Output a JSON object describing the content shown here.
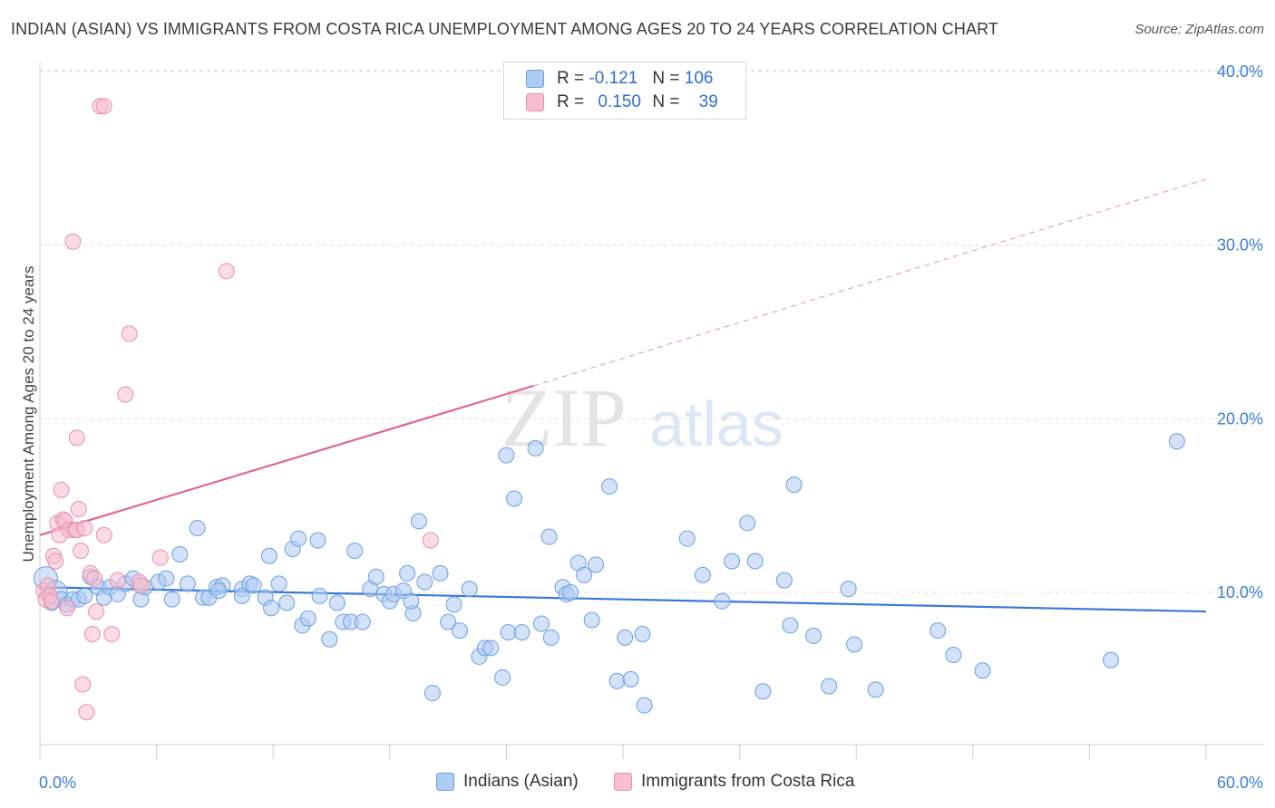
{
  "header": {
    "title": "INDIAN (ASIAN) VS IMMIGRANTS FROM COSTA RICA UNEMPLOYMENT AMONG AGES 20 TO 24 YEARS CORRELATION CHART",
    "source": "Source: ZipAtlas.com"
  },
  "watermark": {
    "zip": "ZIP",
    "atlas": "atlas"
  },
  "legend": {
    "r_label": "R =",
    "n_label": "N =",
    "series": [
      {
        "name": "Indians (Asian)",
        "r": "-0.121",
        "n": "106",
        "color": "#6a9fe0",
        "fill": "#aecbf2"
      },
      {
        "name": "Immigrants from Costa Rica",
        "r": "0.150",
        "n": "39",
        "color": "#e890aa",
        "fill": "#f7bdd0"
      }
    ]
  },
  "chart_data": {
    "type": "scatter",
    "title": "INDIAN (ASIAN) VS IMMIGRANTS FROM COSTA RICA UNEMPLOYMENT AMONG AGES 20 TO 24 YEARS CORRELATION CHART",
    "xlabel": "",
    "ylabel": "Unemployment Among Ages 20 to 24 years",
    "xlim": [
      0,
      60
    ],
    "ylim": [
      0,
      42
    ],
    "x_tick_labels": [
      "0.0%",
      "60.0%"
    ],
    "y_ticks": [
      10,
      20,
      30,
      40
    ],
    "y_tick_labels": [
      "10.0%",
      "20.0%",
      "30.0%",
      "40.0%"
    ],
    "grid": true,
    "series": [
      {
        "name": "Indians (Asian)",
        "color": "#3a78d8",
        "trend": {
          "x": [
            0,
            60
          ],
          "y": [
            10.3,
            8.9
          ],
          "style": "solid"
        },
        "points": [
          {
            "x": 0.3,
            "y": 10.8,
            "big": true
          },
          {
            "x": 0.8,
            "y": 10.0,
            "big": true
          },
          {
            "x": 1.1,
            "y": 9.6
          },
          {
            "x": 1.4,
            "y": 9.3
          },
          {
            "x": 1.7,
            "y": 9.6
          },
          {
            "x": 2.0,
            "y": 9.6
          },
          {
            "x": 2.3,
            "y": 9.8
          },
          {
            "x": 2.6,
            "y": 10.9
          },
          {
            "x": 3.0,
            "y": 10.3
          },
          {
            "x": 3.3,
            "y": 9.7
          },
          {
            "x": 3.6,
            "y": 10.3
          },
          {
            "x": 4.0,
            "y": 9.9
          },
          {
            "x": 4.4,
            "y": 10.5
          },
          {
            "x": 4.8,
            "y": 10.8
          },
          {
            "x": 5.2,
            "y": 9.6
          },
          {
            "x": 5.4,
            "y": 10.3
          },
          {
            "x": 6.1,
            "y": 10.6
          },
          {
            "x": 6.5,
            "y": 10.8
          },
          {
            "x": 6.8,
            "y": 9.6
          },
          {
            "x": 7.2,
            "y": 12.2
          },
          {
            "x": 7.6,
            "y": 10.5
          },
          {
            "x": 8.1,
            "y": 13.7
          },
          {
            "x": 8.4,
            "y": 9.7
          },
          {
            "x": 8.7,
            "y": 9.7
          },
          {
            "x": 9.1,
            "y": 10.3
          },
          {
            "x": 9.4,
            "y": 10.4
          },
          {
            "x": 9.2,
            "y": 10.1
          },
          {
            "x": 10.4,
            "y": 10.2
          },
          {
            "x": 10.4,
            "y": 9.8
          },
          {
            "x": 10.8,
            "y": 10.5
          },
          {
            "x": 11.0,
            "y": 10.4
          },
          {
            "x": 11.6,
            "y": 9.7
          },
          {
            "x": 11.8,
            "y": 12.1
          },
          {
            "x": 11.9,
            "y": 9.1
          },
          {
            "x": 12.3,
            "y": 10.5
          },
          {
            "x": 12.7,
            "y": 9.4
          },
          {
            "x": 13.0,
            "y": 12.5
          },
          {
            "x": 13.3,
            "y": 13.1
          },
          {
            "x": 13.5,
            "y": 8.1
          },
          {
            "x": 13.8,
            "y": 8.5
          },
          {
            "x": 14.3,
            "y": 13.0
          },
          {
            "x": 14.4,
            "y": 9.8
          },
          {
            "x": 14.9,
            "y": 7.3
          },
          {
            "x": 15.3,
            "y": 9.4
          },
          {
            "x": 15.6,
            "y": 8.3
          },
          {
            "x": 16.2,
            "y": 12.4
          },
          {
            "x": 16.0,
            "y": 8.3
          },
          {
            "x": 16.6,
            "y": 8.3
          },
          {
            "x": 17.0,
            "y": 10.2
          },
          {
            "x": 17.3,
            "y": 10.9
          },
          {
            "x": 17.7,
            "y": 9.9
          },
          {
            "x": 18.0,
            "y": 9.5
          },
          {
            "x": 18.2,
            "y": 9.9
          },
          {
            "x": 18.7,
            "y": 10.1
          },
          {
            "x": 18.9,
            "y": 11.1
          },
          {
            "x": 19.2,
            "y": 8.8
          },
          {
            "x": 19.5,
            "y": 14.1
          },
          {
            "x": 19.8,
            "y": 10.6
          },
          {
            "x": 20.2,
            "y": 4.2
          },
          {
            "x": 20.6,
            "y": 11.1
          },
          {
            "x": 21.0,
            "y": 8.3
          },
          {
            "x": 21.3,
            "y": 9.3
          },
          {
            "x": 21.6,
            "y": 7.8
          },
          {
            "x": 22.1,
            "y": 10.2
          },
          {
            "x": 22.6,
            "y": 6.3
          },
          {
            "x": 22.9,
            "y": 6.8
          },
          {
            "x": 23.2,
            "y": 6.8
          },
          {
            "x": 23.8,
            "y": 5.1
          },
          {
            "x": 24.1,
            "y": 7.7
          },
          {
            "x": 24.4,
            "y": 15.4
          },
          {
            "x": 24.8,
            "y": 7.7
          },
          {
            "x": 25.5,
            "y": 18.3
          },
          {
            "x": 25.8,
            "y": 8.2
          },
          {
            "x": 26.2,
            "y": 13.2
          },
          {
            "x": 26.3,
            "y": 7.4
          },
          {
            "x": 26.9,
            "y": 10.3
          },
          {
            "x": 27.1,
            "y": 9.9
          },
          {
            "x": 27.3,
            "y": 10.0
          },
          {
            "x": 27.7,
            "y": 11.7
          },
          {
            "x": 28.0,
            "y": 11.0
          },
          {
            "x": 28.4,
            "y": 8.4
          },
          {
            "x": 28.6,
            "y": 11.6
          },
          {
            "x": 29.3,
            "y": 16.1
          },
          {
            "x": 29.7,
            "y": 4.9
          },
          {
            "x": 30.1,
            "y": 7.4
          },
          {
            "x": 30.4,
            "y": 5.0
          },
          {
            "x": 31.0,
            "y": 7.6
          },
          {
            "x": 31.1,
            "y": 3.5
          },
          {
            "x": 33.3,
            "y": 13.1
          },
          {
            "x": 34.1,
            "y": 11.0
          },
          {
            "x": 35.1,
            "y": 9.5
          },
          {
            "x": 35.6,
            "y": 11.8
          },
          {
            "x": 36.4,
            "y": 14.0
          },
          {
            "x": 36.8,
            "y": 11.8
          },
          {
            "x": 37.2,
            "y": 4.3
          },
          {
            "x": 38.3,
            "y": 10.7
          },
          {
            "x": 38.6,
            "y": 8.1
          },
          {
            "x": 38.8,
            "y": 16.2
          },
          {
            "x": 39.8,
            "y": 7.5
          },
          {
            "x": 40.6,
            "y": 4.6
          },
          {
            "x": 41.6,
            "y": 10.2
          },
          {
            "x": 41.9,
            "y": 7.0
          },
          {
            "x": 43.0,
            "y": 4.4
          },
          {
            "x": 46.2,
            "y": 7.8
          },
          {
            "x": 47.0,
            "y": 6.4
          },
          {
            "x": 48.5,
            "y": 5.5
          },
          {
            "x": 55.1,
            "y": 6.1
          },
          {
            "x": 58.5,
            "y": 18.7
          },
          {
            "x": 24.0,
            "y": 17.9
          },
          {
            "x": 19.1,
            "y": 9.5
          },
          {
            "x": 0.6,
            "y": 9.4
          }
        ]
      },
      {
        "name": "Immigrants from Costa Rica",
        "color": "#e0688f",
        "trend": {
          "x": [
            0,
            25.4
          ],
          "y": [
            13.3,
            21.9
          ],
          "style": "solid",
          "extended": {
            "x": [
              25.4,
              60
            ],
            "y": [
              21.9,
              33.8
            ],
            "style": "dashed"
          }
        },
        "points": [
          {
            "x": 0.2,
            "y": 10.1
          },
          {
            "x": 0.3,
            "y": 9.6
          },
          {
            "x": 0.4,
            "y": 10.4
          },
          {
            "x": 0.5,
            "y": 9.8
          },
          {
            "x": 0.6,
            "y": 9.5
          },
          {
            "x": 0.7,
            "y": 12.1
          },
          {
            "x": 0.8,
            "y": 11.8
          },
          {
            "x": 0.9,
            "y": 14.0
          },
          {
            "x": 1.0,
            "y": 13.3
          },
          {
            "x": 1.1,
            "y": 15.9
          },
          {
            "x": 1.2,
            "y": 14.2
          },
          {
            "x": 1.3,
            "y": 14.1
          },
          {
            "x": 1.4,
            "y": 9.1
          },
          {
            "x": 1.5,
            "y": 13.6
          },
          {
            "x": 1.7,
            "y": 30.2
          },
          {
            "x": 1.8,
            "y": 13.6
          },
          {
            "x": 1.9,
            "y": 13.6
          },
          {
            "x": 1.9,
            "y": 18.9
          },
          {
            "x": 2.0,
            "y": 14.8
          },
          {
            "x": 2.1,
            "y": 12.4
          },
          {
            "x": 2.2,
            "y": 4.7
          },
          {
            "x": 2.3,
            "y": 13.7
          },
          {
            "x": 2.4,
            "y": 3.1
          },
          {
            "x": 2.6,
            "y": 11.1
          },
          {
            "x": 2.7,
            "y": 7.6
          },
          {
            "x": 2.8,
            "y": 10.8
          },
          {
            "x": 2.9,
            "y": 8.9
          },
          {
            "x": 3.1,
            "y": 38.0
          },
          {
            "x": 3.3,
            "y": 38.0
          },
          {
            "x": 3.3,
            "y": 13.3
          },
          {
            "x": 3.7,
            "y": 7.6
          },
          {
            "x": 4.0,
            "y": 10.7
          },
          {
            "x": 4.4,
            "y": 21.4
          },
          {
            "x": 4.6,
            "y": 24.9
          },
          {
            "x": 5.1,
            "y": 10.6
          },
          {
            "x": 5.2,
            "y": 10.4
          },
          {
            "x": 6.2,
            "y": 12.0
          },
          {
            "x": 9.6,
            "y": 28.5
          },
          {
            "x": 20.1,
            "y": 13.0
          }
        ]
      }
    ]
  }
}
